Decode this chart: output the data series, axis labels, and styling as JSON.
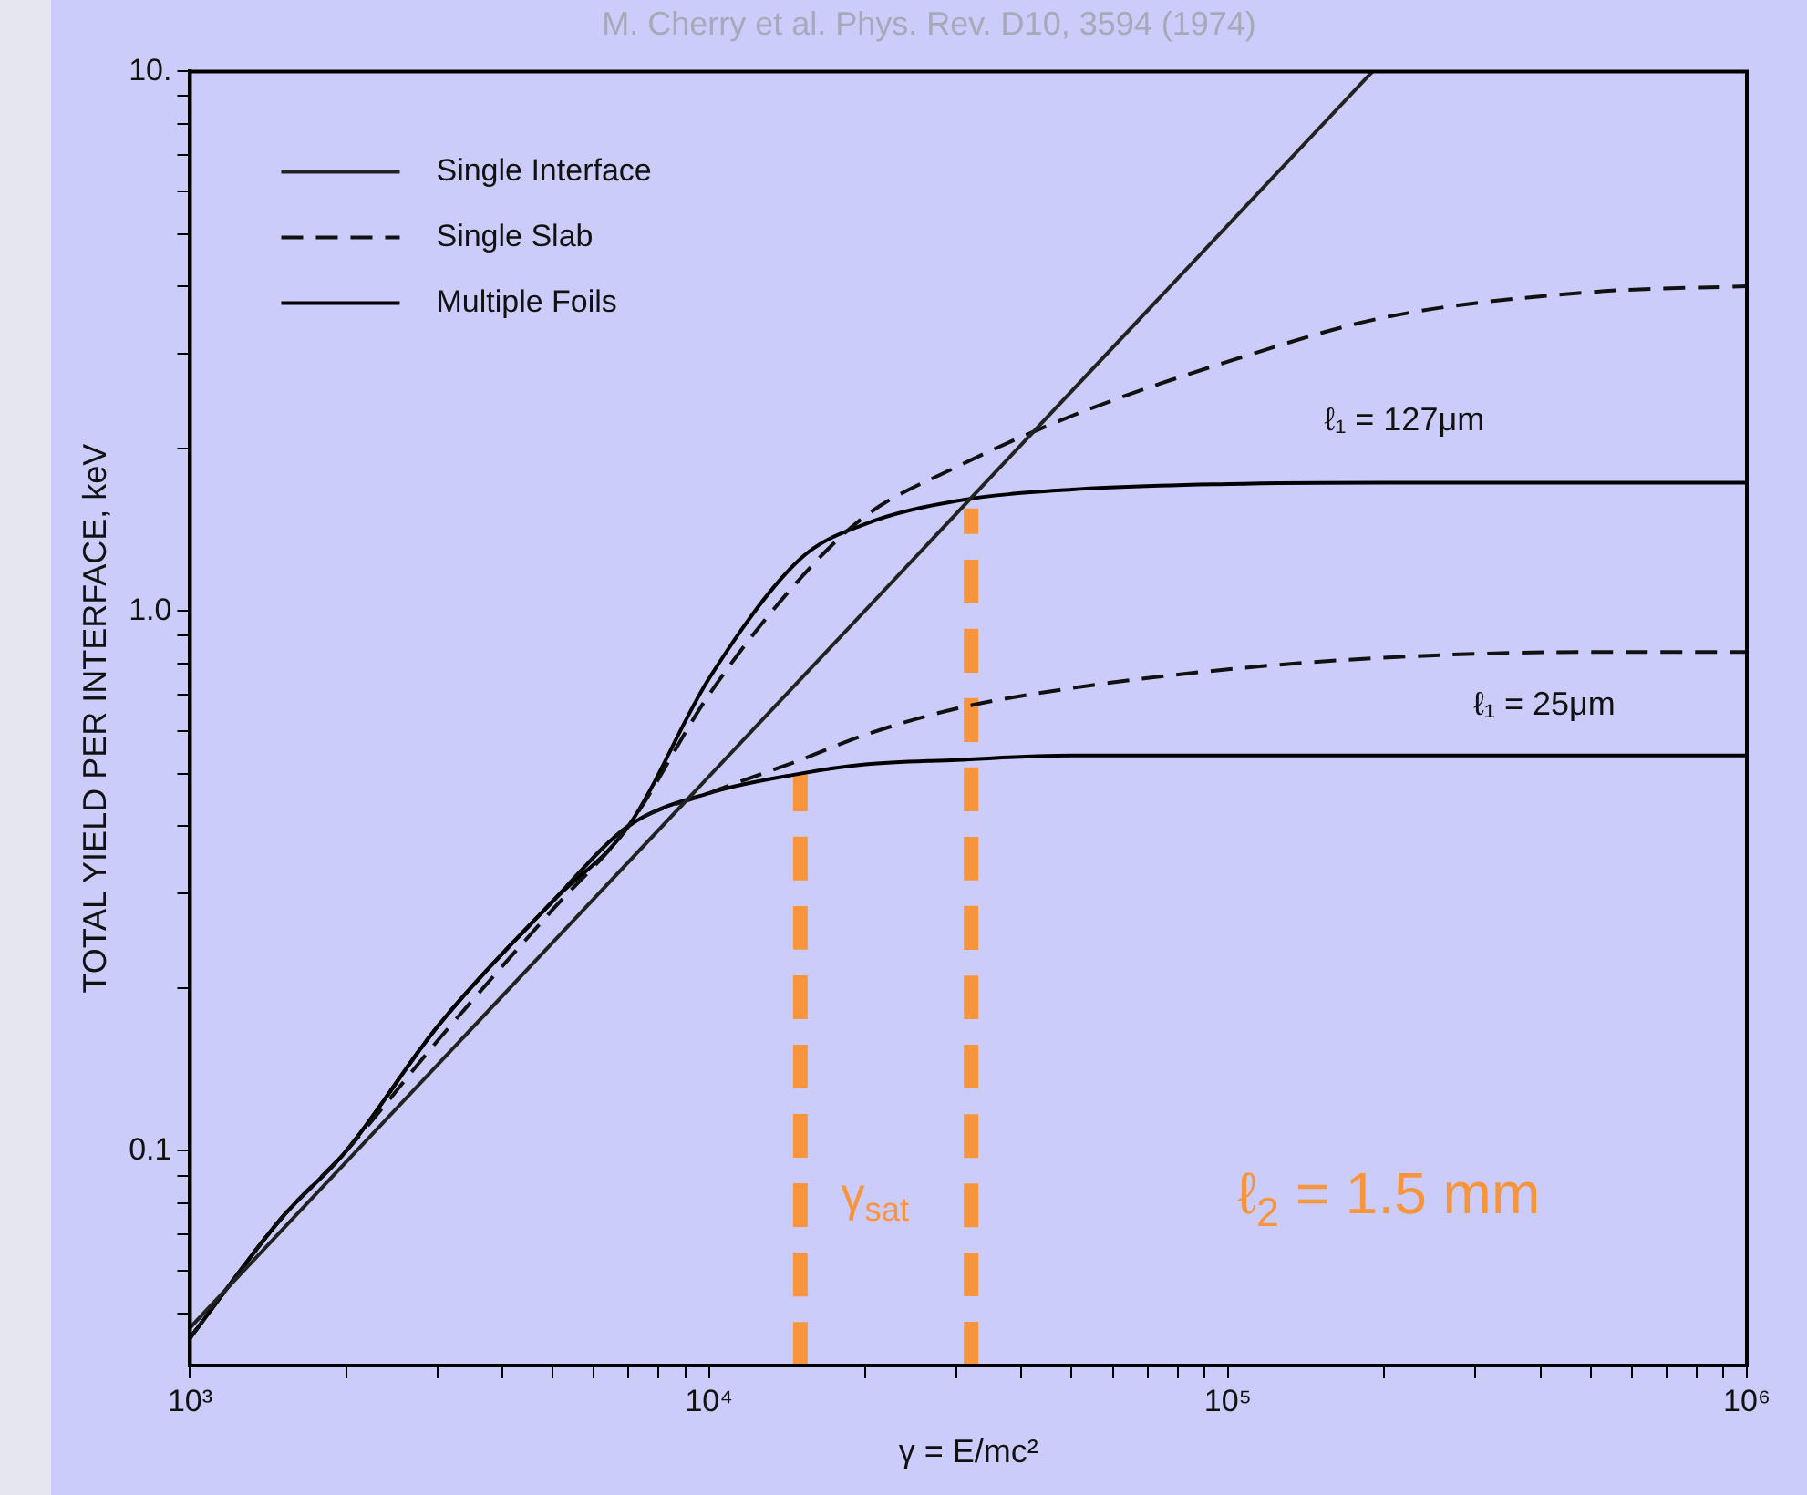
{
  "chart_data": {
    "type": "line",
    "xlabel": "γ = E/mc²",
    "ylabel": "TOTAL YIELD PER INTERFACE, keV",
    "log": "xy",
    "grid": false,
    "legend": "top left",
    "xlim": [
      1000,
      1000000
    ],
    "ylim": [
      0.04,
      10
    ],
    "xticks": [
      {
        "value": 1000,
        "label": "10³"
      },
      {
        "value": 2000,
        "label": null
      },
      {
        "value": 3000,
        "label": null
      },
      {
        "value": 4000,
        "label": null
      },
      {
        "value": 5000,
        "label": null
      },
      {
        "value": 6000,
        "label": null
      },
      {
        "value": 7000,
        "label": null
      },
      {
        "value": 8000,
        "label": null
      },
      {
        "value": 9000,
        "label": null
      },
      {
        "value": 10000,
        "label": "10⁴"
      },
      {
        "value": 20000,
        "label": null
      },
      {
        "value": 30000,
        "label": null
      },
      {
        "value": 40000,
        "label": null
      },
      {
        "value": 50000,
        "label": null
      },
      {
        "value": 60000,
        "label": null
      },
      {
        "value": 70000,
        "label": null
      },
      {
        "value": 80000,
        "label": null
      },
      {
        "value": 90000,
        "label": null
      },
      {
        "value": 100000,
        "label": "10⁵"
      },
      {
        "value": 200000,
        "label": null
      },
      {
        "value": 300000,
        "label": null
      },
      {
        "value": 400000,
        "label": null
      },
      {
        "value": 500000,
        "label": null
      },
      {
        "value": 600000,
        "label": null
      },
      {
        "value": 700000,
        "label": null
      },
      {
        "value": 800000,
        "label": null
      },
      {
        "value": 900000,
        "label": null
      },
      {
        "value": 1000000,
        "label": "10⁶"
      }
    ],
    "yticks": [
      {
        "value": 0.05,
        "label": null
      },
      {
        "value": 0.06,
        "label": null
      },
      {
        "value": 0.07,
        "label": null
      },
      {
        "value": 0.08,
        "label": null
      },
      {
        "value": 0.09,
        "label": null
      },
      {
        "value": 0.1,
        "label": "0.1"
      },
      {
        "value": 0.2,
        "label": null
      },
      {
        "value": 0.3,
        "label": null
      },
      {
        "value": 0.4,
        "label": null
      },
      {
        "value": 0.5,
        "label": null
      },
      {
        "value": 0.6,
        "label": null
      },
      {
        "value": 0.7,
        "label": null
      },
      {
        "value": 0.8,
        "label": null
      },
      {
        "value": 0.9,
        "label": null
      },
      {
        "value": 1,
        "label": "1.0"
      },
      {
        "value": 2,
        "label": null
      },
      {
        "value": 3,
        "label": null
      },
      {
        "value": 4,
        "label": null
      },
      {
        "value": 5,
        "label": null
      },
      {
        "value": 6,
        "label": null
      },
      {
        "value": 7,
        "label": null
      },
      {
        "value": 8,
        "label": null
      },
      {
        "value": 9,
        "label": null
      },
      {
        "value": 10,
        "label": "10."
      }
    ],
    "series": [
      {
        "name": "Single Interface",
        "color": "#222222",
        "line_style": "solid",
        "x": [
          1000,
          190000
        ],
        "values": [
          0.047,
          10
        ]
      },
      {
        "name": "Single Slab",
        "color": "#111111",
        "line_style": "dashed",
        "x": [
          1000,
          1500,
          2000,
          3000,
          5000,
          7000,
          10000,
          15000,
          20000,
          30000,
          50000,
          100000,
          200000,
          500000,
          1000000
        ],
        "values": [
          0.045,
          0.075,
          0.1,
          0.16,
          0.28,
          0.4,
          0.7,
          1.15,
          1.5,
          1.85,
          2.3,
          2.9,
          3.5,
          3.9,
          4.0
        ]
      },
      {
        "name": "Multiple Foils",
        "color": "#000000",
        "line_style": "solid",
        "x": [
          1000,
          1500,
          2000,
          3000,
          5000,
          7000,
          10000,
          15000,
          20000,
          30000,
          50000,
          100000,
          200000,
          500000,
          1000000
        ],
        "values": [
          0.045,
          0.075,
          0.1,
          0.17,
          0.29,
          0.4,
          0.75,
          1.25,
          1.45,
          1.6,
          1.68,
          1.72,
          1.73,
          1.73,
          1.73
        ]
      },
      {
        "color": "#111111",
        "line_style": "dashed",
        "x": [
          1000,
          1500,
          2000,
          3000,
          5000,
          7000,
          10000,
          15000,
          20000,
          30000,
          50000,
          100000,
          200000,
          500000,
          1000000
        ],
        "values": [
          0.045,
          0.075,
          0.1,
          0.17,
          0.29,
          0.4,
          0.46,
          0.53,
          0.59,
          0.66,
          0.72,
          0.78,
          0.82,
          0.84,
          0.84
        ]
      },
      {
        "color": "#000000",
        "line_style": "solid",
        "x": [
          1000,
          1500,
          2000,
          3000,
          5000,
          7000,
          10000,
          15000,
          20000,
          30000,
          50000,
          100000,
          200000,
          500000,
          1000000
        ],
        "values": [
          0.045,
          0.075,
          0.1,
          0.17,
          0.29,
          0.4,
          0.46,
          0.5,
          0.52,
          0.53,
          0.54,
          0.54,
          0.54,
          0.54,
          0.54
        ]
      },
      {
        "color": "#f7953e",
        "line_style": "dashed",
        "x": [
          15000,
          15000
        ],
        "values": [
          0.04,
          0.5
        ]
      },
      {
        "color": "#f7953e",
        "line_style": "dashed",
        "x": [
          32000,
          32000
        ],
        "values": [
          0.04,
          1.55
        ]
      }
    ],
    "annotations": [
      "M. Cherry et al. Phys. Rev. D10, 3594 (1974)",
      "ℓ₁ = 127μm",
      "ℓ₁ = 25μm",
      "γ$_{sat}$",
      "ℓ$_{2}$ = 1.5 mm"
    ]
  }
}
